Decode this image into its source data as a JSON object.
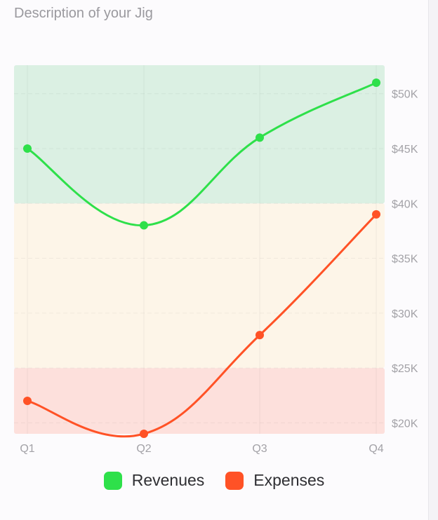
{
  "description": "Description of your Jig",
  "chart_data": {
    "type": "line",
    "categories": [
      "Q1",
      "Q2",
      "Q3",
      "Q4"
    ],
    "series": [
      {
        "name": "Revenues",
        "color": "#2ee04a",
        "values": [
          45000,
          38000,
          46000,
          51000
        ]
      },
      {
        "name": "Expenses",
        "color": "#ff5226",
        "values": [
          22000,
          19000,
          28000,
          39000
        ]
      }
    ],
    "y_ticks": [
      20000,
      25000,
      30000,
      35000,
      40000,
      45000,
      50000
    ],
    "y_tick_labels": [
      "$20K",
      "$25K",
      "$30K",
      "$35K",
      "$40K",
      "$45K",
      "$50K"
    ],
    "ylim": [
      19000,
      52600
    ],
    "y_axis_position": "right",
    "grid": true,
    "bands": [
      {
        "from": 19000,
        "to": 25000,
        "color": "#fde0dc"
      },
      {
        "from": 25000,
        "to": 40000,
        "color": "#fdf5e8"
      },
      {
        "from": 40000,
        "to": 52600,
        "color": "#dbf0e3"
      }
    ],
    "legend_position": "bottom"
  }
}
